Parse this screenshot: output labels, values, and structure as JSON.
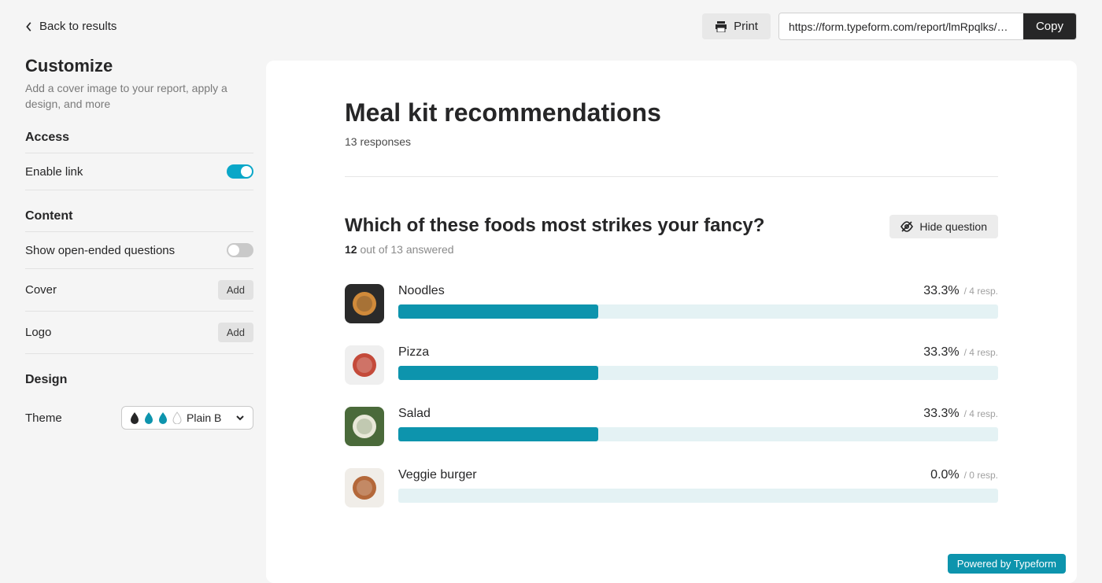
{
  "header": {
    "back_label": "Back to results",
    "print_label": "Print",
    "url": "https://form.typeform.com/report/lmRpqlks/Cmo...",
    "copy_label": "Copy"
  },
  "sidebar": {
    "title": "Customize",
    "description": "Add a cover image to your report, apply a design, and more",
    "access_heading": "Access",
    "enable_link_label": "Enable link",
    "enable_link_on": true,
    "content_heading": "Content",
    "show_open_label": "Show open-ended questions",
    "show_open_on": false,
    "cover_label": "Cover",
    "logo_label": "Logo",
    "add_label": "Add",
    "design_heading": "Design",
    "theme_label": "Theme",
    "theme_value": "Plain B",
    "theme_swatches": [
      "#262627",
      "#0d94ad",
      "#0d94ad",
      "#ffffff"
    ]
  },
  "report": {
    "title": "Meal kit recommendations",
    "responses_label": "13 responses",
    "question": {
      "title": "Which of these foods most strikes your fancy?",
      "hide_label": "Hide question",
      "answered_count": "12",
      "answered_suffix": " out of 13 answered",
      "bar_fill_color": "#0d94ad",
      "bar_track_color": "#e4f2f4",
      "options": [
        {
          "name": "Noodles",
          "pct": "33.3%",
          "resp": "/ 4 resp.",
          "fill_pct": 33.3,
          "thumb_bg": "#2a2a2a",
          "thumb_accent": "#d08a3a"
        },
        {
          "name": "Pizza",
          "pct": "33.3%",
          "resp": "/ 4 resp.",
          "fill_pct": 33.3,
          "thumb_bg": "#efefef",
          "thumb_accent": "#c44a3a"
        },
        {
          "name": "Salad",
          "pct": "33.3%",
          "resp": "/ 4 resp.",
          "fill_pct": 33.3,
          "thumb_bg": "#4a6a3a",
          "thumb_accent": "#e8e8d8"
        },
        {
          "name": "Veggie burger",
          "pct": "0.0%",
          "resp": "/ 0 resp.",
          "fill_pct": 0.0,
          "thumb_bg": "#f0ede8",
          "thumb_accent": "#b4683a"
        }
      ]
    },
    "powered_label": "Powered by Typeform"
  }
}
